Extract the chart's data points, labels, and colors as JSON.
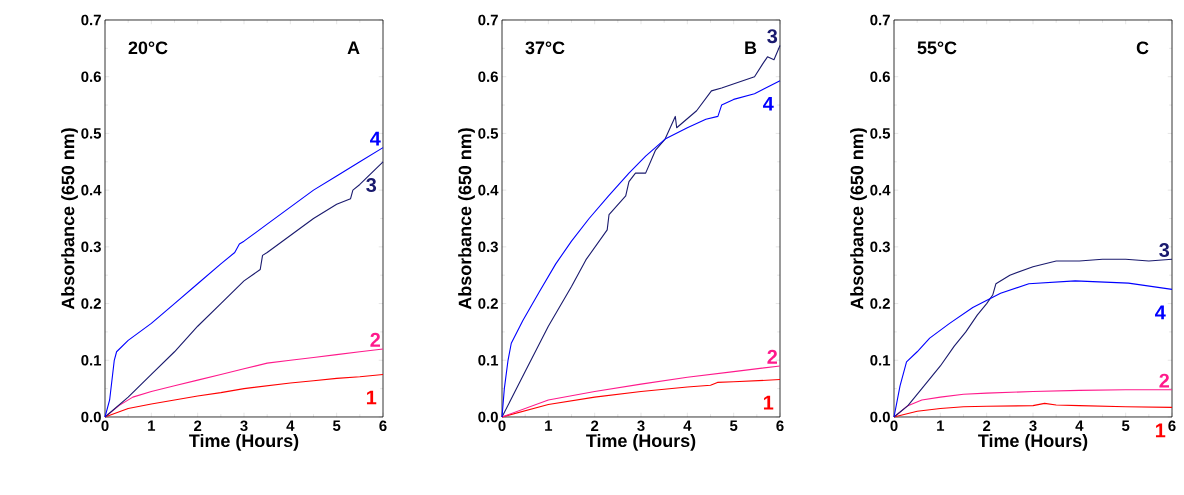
{
  "chart_data": [
    {
      "type": "line",
      "xlabel": "Time (Hours)",
      "ylabel": "Absorbance (650 nm)",
      "annotations": [
        "20°C",
        "A"
      ],
      "xlim": [
        0,
        6
      ],
      "ylim": [
        0,
        0.7
      ],
      "xticks": [
        0,
        1,
        2,
        3,
        4,
        5,
        6
      ],
      "yticks": [
        {
          "value": 0,
          "label": "0.0"
        },
        {
          "value": 0.1,
          "label": "0.1"
        },
        {
          "value": 0.2,
          "label": "0.2"
        },
        {
          "value": 0.3,
          "label": "0.3"
        },
        {
          "value": 0.4,
          "label": "0.4"
        },
        {
          "value": 0.5,
          "label": "0.5"
        },
        {
          "value": 0.6,
          "label": "0.6"
        },
        {
          "value": 0.7,
          "label": "0.7"
        }
      ],
      "series": [
        {
          "name": "1",
          "color": "#ff0000",
          "x": [
            0,
            0.5,
            1,
            1.5,
            2,
            2.5,
            3,
            3.5,
            4,
            4.5,
            5,
            5.5,
            6
          ],
          "values": [
            0,
            0.015,
            0.023,
            0.03,
            0.037,
            0.043,
            0.05,
            0.055,
            0.06,
            0.064,
            0.068,
            0.071,
            0.075
          ]
        },
        {
          "name": "2",
          "color": "#ff1a8c",
          "x": [
            0,
            0.3,
            0.6,
            1,
            1.5,
            2,
            2.5,
            3,
            3.5,
            4,
            4.5,
            5,
            5.5,
            6
          ],
          "values": [
            0,
            0.02,
            0.035,
            0.045,
            0.055,
            0.065,
            0.075,
            0.085,
            0.095,
            0.1,
            0.105,
            0.11,
            0.115,
            0.12
          ]
        },
        {
          "name": "3",
          "color": "#1a1a6e",
          "x": [
            0,
            0.5,
            1,
            1.5,
            2,
            2.5,
            3,
            3.35,
            3.4,
            3.5,
            4,
            4.5,
            5,
            5.3,
            5.35,
            5.5,
            6
          ],
          "values": [
            0,
            0.035,
            0.075,
            0.115,
            0.16,
            0.2,
            0.24,
            0.26,
            0.285,
            0.29,
            0.32,
            0.35,
            0.375,
            0.385,
            0.4,
            0.41,
            0.45
          ]
        },
        {
          "name": "4",
          "color": "#0000ff",
          "x": [
            0,
            0.1,
            0.2,
            0.25,
            0.5,
            1,
            1.5,
            2,
            2.5,
            2.8,
            2.9,
            3,
            3.5,
            4,
            4.5,
            5,
            5.5,
            6
          ],
          "values": [
            0,
            0.03,
            0.1,
            0.115,
            0.135,
            0.165,
            0.2,
            0.235,
            0.27,
            0.29,
            0.305,
            0.31,
            0.34,
            0.37,
            0.4,
            0.425,
            0.45,
            0.475
          ]
        }
      ]
    },
    {
      "type": "line",
      "xlabel": "Time (Hours)",
      "ylabel": "Absorbance (650 nm)",
      "annotations": [
        "37°C",
        "B"
      ],
      "xlim": [
        0,
        6
      ],
      "ylim": [
        0,
        0.7
      ],
      "xticks": [
        0,
        1,
        2,
        3,
        4,
        5,
        6
      ],
      "yticks": [
        {
          "value": 0,
          "label": "0.0"
        },
        {
          "value": 0.1,
          "label": "0.1"
        },
        {
          "value": 0.2,
          "label": "0.2"
        },
        {
          "value": 0.3,
          "label": "0.3"
        },
        {
          "value": 0.4,
          "label": "0.4"
        },
        {
          "value": 0.5,
          "label": "0.5"
        },
        {
          "value": 0.6,
          "label": "0.6"
        },
        {
          "value": 0.7,
          "label": "0.7"
        }
      ],
      "series": [
        {
          "name": "1",
          "color": "#ff0000",
          "x": [
            0,
            1,
            2,
            3,
            4,
            4.5,
            4.65,
            5,
            6
          ],
          "values": [
            0,
            0.022,
            0.035,
            0.045,
            0.053,
            0.056,
            0.061,
            0.062,
            0.066
          ]
        },
        {
          "name": "2",
          "color": "#ff1a8c",
          "x": [
            0,
            1,
            2,
            3,
            4,
            5,
            6
          ],
          "values": [
            0,
            0.03,
            0.045,
            0.058,
            0.07,
            0.08,
            0.09
          ]
        },
        {
          "name": "3",
          "color": "#1a1a6e",
          "x": [
            0,
            0.5,
            1,
            1.5,
            1.81,
            2.27,
            2.31,
            2.67,
            2.74,
            2.88,
            3.1,
            3.31,
            3.52,
            3.74,
            3.77,
            4.2,
            4.52,
            4.74,
            5.45,
            5.63,
            5.73,
            5.87,
            6
          ],
          "values": [
            0,
            0.08,
            0.16,
            0.23,
            0.277,
            0.33,
            0.357,
            0.39,
            0.415,
            0.43,
            0.43,
            0.47,
            0.49,
            0.53,
            0.51,
            0.54,
            0.575,
            0.58,
            0.6,
            0.623,
            0.635,
            0.63,
            0.655
          ]
        },
        {
          "name": "4",
          "color": "#0000ff",
          "x": [
            0,
            0.05,
            0.13,
            0.2,
            0.45,
            0.8,
            1.16,
            1.5,
            1.88,
            2.3,
            2.74,
            3.1,
            3.52,
            4,
            4.4,
            4.66,
            4.74,
            5,
            5.45,
            6
          ],
          "values": [
            0,
            0.05,
            0.1,
            0.13,
            0.17,
            0.22,
            0.27,
            0.31,
            0.35,
            0.39,
            0.43,
            0.46,
            0.49,
            0.51,
            0.525,
            0.53,
            0.55,
            0.56,
            0.57,
            0.593
          ]
        }
      ]
    },
    {
      "type": "line",
      "xlabel": "Time (Hours)",
      "ylabel": "Absorbance (650 nm)",
      "annotations": [
        "55°C",
        "C"
      ],
      "xlim": [
        0,
        6
      ],
      "ylim": [
        0,
        0.7
      ],
      "xticks": [
        0,
        1,
        2,
        3,
        4,
        5,
        6
      ],
      "yticks": [
        {
          "value": 0,
          "label": "0.0"
        },
        {
          "value": 0.1,
          "label": "0.1"
        },
        {
          "value": 0.2,
          "label": "0.2"
        },
        {
          "value": 0.3,
          "label": "0.3"
        },
        {
          "value": 0.4,
          "label": "0.4"
        },
        {
          "value": 0.5,
          "label": "0.5"
        },
        {
          "value": 0.6,
          "label": "0.6"
        },
        {
          "value": 0.7,
          "label": "0.7"
        }
      ],
      "series": [
        {
          "name": "1",
          "color": "#ff0000",
          "x": [
            0,
            0.5,
            1,
            1.5,
            2,
            3,
            3.25,
            3.5,
            4,
            5,
            6
          ],
          "values": [
            0,
            0.01,
            0.015,
            0.018,
            0.019,
            0.02,
            0.024,
            0.021,
            0.02,
            0.018,
            0.017
          ]
        },
        {
          "name": "2",
          "color": "#ff1a8c",
          "x": [
            0,
            0.3,
            0.6,
            1,
            1.5,
            2,
            3,
            4,
            5,
            6
          ],
          "values": [
            0,
            0.02,
            0.03,
            0.035,
            0.04,
            0.042,
            0.045,
            0.047,
            0.048,
            0.048
          ]
        },
        {
          "name": "3",
          "color": "#1a1a6e",
          "x": [
            0,
            0.3,
            0.6,
            1,
            1.3,
            1.55,
            1.8,
            2,
            2.13,
            2.2,
            2.5,
            3,
            3.5,
            4,
            4.5,
            5,
            5.5,
            6
          ],
          "values": [
            0,
            0.02,
            0.05,
            0.09,
            0.125,
            0.15,
            0.18,
            0.2,
            0.215,
            0.235,
            0.25,
            0.265,
            0.275,
            0.275,
            0.278,
            0.278,
            0.275,
            0.278
          ]
        },
        {
          "name": "4",
          "color": "#0000ff",
          "x": [
            0,
            0.13,
            0.27,
            0.5,
            0.77,
            1.2,
            1.7,
            2.3,
            2.91,
            3.91,
            5.06,
            6
          ],
          "values": [
            0,
            0.055,
            0.097,
            0.115,
            0.139,
            0.165,
            0.193,
            0.218,
            0.235,
            0.24,
            0.236,
            0.225
          ]
        }
      ]
    }
  ]
}
